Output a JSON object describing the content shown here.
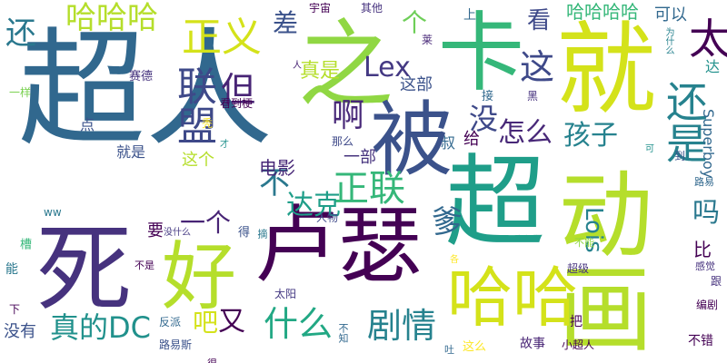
{
  "wordcloud": {
    "background": "#ffffff",
    "words": [
      {
        "text": "超人",
        "color": "#31688e"
      },
      {
        "text": "卡",
        "color": "#35b779"
      },
      {
        "text": "就",
        "color": "#d4e21a"
      },
      {
        "text": "之",
        "color": "#90d743"
      },
      {
        "text": "被",
        "color": "#3b528b"
      },
      {
        "text": "超",
        "color": "#1f9e89"
      },
      {
        "text": "动画",
        "color": "#b5de2b"
      },
      {
        "text": "死",
        "color": "#46327e"
      },
      {
        "text": "卢瑟",
        "color": "#440154"
      },
      {
        "text": "好",
        "color": "#b5de2b"
      },
      {
        "text": "哈哈",
        "color": "#d4e21a"
      },
      {
        "text": "哈哈哈",
        "color": "#b5de2b"
      },
      {
        "text": "正义",
        "color": "#d4e21a"
      },
      {
        "text": "联盟",
        "color": "#3e4989"
      },
      {
        "text": "但",
        "color": "#482475"
      },
      {
        "text": "还是",
        "color": "#26828e"
      },
      {
        "text": "太",
        "color": "#440154"
      },
      {
        "text": "这",
        "color": "#3e4989"
      },
      {
        "text": "还",
        "color": "#2a788e"
      },
      {
        "text": "差",
        "color": "#3b528b"
      },
      {
        "text": "个",
        "color": "#6ece58"
      },
      {
        "text": "Lex",
        "color": "#443983"
      },
      {
        "text": "啊",
        "color": "#482878"
      },
      {
        "text": "没",
        "color": "#3e4989"
      },
      {
        "text": "怎么",
        "color": "#482878"
      },
      {
        "text": "孩子",
        "color": "#26828e"
      },
      {
        "text": "正联",
        "color": "#35b779"
      },
      {
        "text": "不",
        "color": "#2a788e"
      },
      {
        "text": "达克",
        "color": "#1f9e89"
      },
      {
        "text": "一个",
        "color": "#482475"
      },
      {
        "text": "爹",
        "color": "#31688e"
      },
      {
        "text": "Lois",
        "color": "#26828e"
      },
      {
        "text": "吗",
        "color": "#2a788e"
      },
      {
        "text": "什么",
        "color": "#22a884"
      },
      {
        "text": "吧",
        "color": "#d4e21a"
      },
      {
        "text": "又",
        "color": "#440154"
      },
      {
        "text": "剧情",
        "color": "#26828e"
      },
      {
        "text": "真的DC",
        "color": "#21918c"
      },
      {
        "text": "看",
        "color": "#3e4989"
      },
      {
        "text": "真是",
        "color": "#b5de2b"
      },
      {
        "text": "电影",
        "color": "#482878"
      },
      {
        "text": "这部",
        "color": "#3b528b"
      },
      {
        "text": "一部",
        "color": "#46337e"
      },
      {
        "text": "要",
        "color": "#440154"
      },
      {
        "text": "比",
        "color": "#440154"
      },
      {
        "text": "哈哈哈哈",
        "color": "#35b779"
      },
      {
        "text": "可以",
        "color": "#31688e"
      },
      {
        "text": "宇宙",
        "color": "#440154"
      },
      {
        "text": "其他",
        "color": "#46327e"
      },
      {
        "text": "上",
        "color": "#31688e"
      },
      {
        "text": "Superboy",
        "color": "#31688e"
      },
      {
        "text": "达",
        "color": "#21918c"
      },
      {
        "text": "为什么",
        "color": "#26828e"
      },
      {
        "text": "赛德",
        "color": "#46337e"
      },
      {
        "text": "一样",
        "color": "#7ad151"
      },
      {
        "text": "看到梗",
        "color": "#440154"
      },
      {
        "text": "就是",
        "color": "#3b528b"
      },
      {
        "text": "这个",
        "color": "#b5de2b"
      },
      {
        "text": "那么",
        "color": "#3e4989"
      },
      {
        "text": "叔",
        "color": "#31688e"
      },
      {
        "text": "给",
        "color": "#440154"
      },
      {
        "text": "接",
        "color": "#31688e"
      },
      {
        "text": "黑",
        "color": "#46327e"
      },
      {
        "text": "点",
        "color": "#3b528b"
      },
      {
        "text": "秃",
        "color": "#fde725"
      },
      {
        "text": "才",
        "color": "#21918c"
      },
      {
        "text": "人",
        "color": "#482475"
      },
      {
        "text": "莱",
        "color": "#482878"
      },
      {
        "text": "到",
        "color": "#3b528b"
      },
      {
        "text": "可",
        "color": "#21918c"
      },
      {
        "text": "路易",
        "color": "#31688e"
      },
      {
        "text": "人物",
        "color": "#3e4989"
      },
      {
        "text": "ww",
        "color": "#2a788e"
      },
      {
        "text": "没什么",
        "color": "#443983"
      },
      {
        "text": "得",
        "color": "#3b528b"
      },
      {
        "text": "摘",
        "color": "#2a788e"
      },
      {
        "text": "不能",
        "color": "#90d743"
      },
      {
        "text": "各",
        "color": "#fde725"
      },
      {
        "text": "超级",
        "color": "#46337e"
      },
      {
        "text": "感觉",
        "color": "#46327e"
      },
      {
        "text": "跟",
        "color": "#46327e"
      },
      {
        "text": "能",
        "color": "#2a788e"
      },
      {
        "text": "槽",
        "color": "#35b779"
      },
      {
        "text": "不是",
        "color": "#440154"
      },
      {
        "text": "太阳",
        "color": "#443983"
      },
      {
        "text": "编剧",
        "color": "#440154"
      },
      {
        "text": "下",
        "color": "#440154"
      },
      {
        "text": "没有",
        "color": "#3b528b"
      },
      {
        "text": "反派",
        "color": "#31688e"
      },
      {
        "text": "不知",
        "color": "#31688e"
      },
      {
        "text": "把",
        "color": "#440154"
      },
      {
        "text": "不错",
        "color": "#440154"
      },
      {
        "text": "路易斯",
        "color": "#3b528b"
      },
      {
        "text": "这么",
        "color": "#fde725"
      },
      {
        "text": "故事",
        "color": "#482475"
      },
      {
        "text": "小超人",
        "color": "#440154"
      },
      {
        "text": "吐",
        "color": "#31688e"
      },
      {
        "text": "很",
        "color": "#440154"
      }
    ]
  }
}
